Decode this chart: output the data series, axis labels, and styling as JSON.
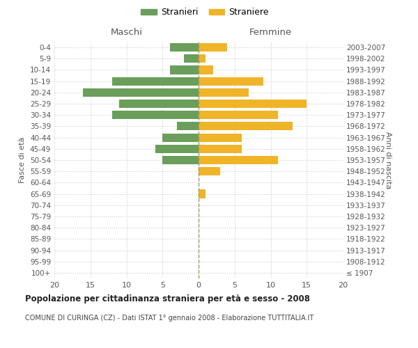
{
  "age_groups": [
    "100+",
    "95-99",
    "90-94",
    "85-89",
    "80-84",
    "75-79",
    "70-74",
    "65-69",
    "60-64",
    "55-59",
    "50-54",
    "45-49",
    "40-44",
    "35-39",
    "30-34",
    "25-29",
    "20-24",
    "15-19",
    "10-14",
    "5-9",
    "0-4"
  ],
  "birth_years": [
    "≤ 1907",
    "1908-1912",
    "1913-1917",
    "1918-1922",
    "1923-1927",
    "1928-1932",
    "1933-1937",
    "1938-1942",
    "1943-1947",
    "1948-1952",
    "1953-1957",
    "1958-1962",
    "1963-1967",
    "1968-1972",
    "1973-1977",
    "1978-1982",
    "1983-1987",
    "1988-1992",
    "1993-1997",
    "1998-2002",
    "2003-2007"
  ],
  "maschi": [
    0,
    0,
    0,
    0,
    0,
    0,
    0,
    0,
    0,
    0,
    5,
    6,
    5,
    3,
    12,
    11,
    16,
    12,
    4,
    2,
    4
  ],
  "femmine": [
    0,
    0,
    0,
    0,
    0,
    0,
    0,
    1,
    0,
    3,
    11,
    6,
    6,
    13,
    11,
    15,
    7,
    9,
    2,
    1,
    4
  ],
  "maschi_color": "#6a9e5a",
  "femmine_color": "#f0b429",
  "bg_color": "#ffffff",
  "grid_color": "#cccccc",
  "xlim": 20,
  "title": "Popolazione per cittadinanza straniera per età e sesso - 2008",
  "subtitle": "COMUNE DI CURINGA (CZ) - Dati ISTAT 1° gennaio 2008 - Elaborazione TUTTITALIA.IT",
  "ylabel_left": "Fasce di età",
  "ylabel_right": "Anni di nascita",
  "header_left": "Maschi",
  "header_right": "Femmine",
  "legend_maschi": "Stranieri",
  "legend_femmine": "Straniere"
}
